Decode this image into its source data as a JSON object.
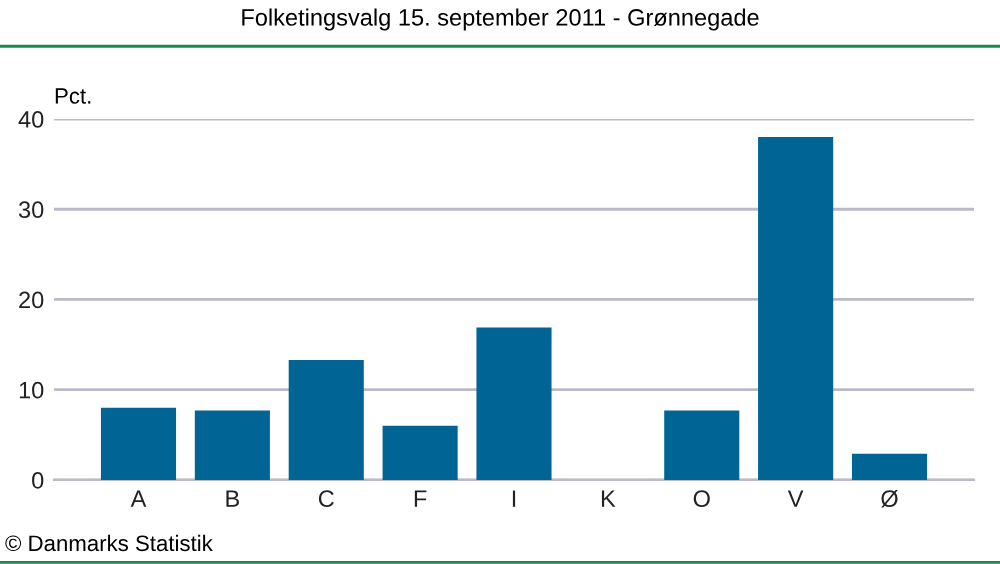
{
  "chart_data": {
    "type": "bar",
    "title": "Folketingsvalg 15. september 2011 - Grønnegade",
    "ylabel": "Pct.",
    "categories": [
      "A",
      "B",
      "C",
      "F",
      "I",
      "K",
      "O",
      "V",
      "Ø"
    ],
    "values": [
      8.0,
      7.7,
      13.3,
      6.0,
      16.9,
      0,
      7.7,
      38.0,
      2.9
    ],
    "color": "#006495",
    "ylim": [
      0,
      40
    ],
    "yticks": [
      0,
      10,
      20,
      30,
      40
    ],
    "grid": "y",
    "annotations": [
      "© Danmarks Statistik"
    ]
  }
}
